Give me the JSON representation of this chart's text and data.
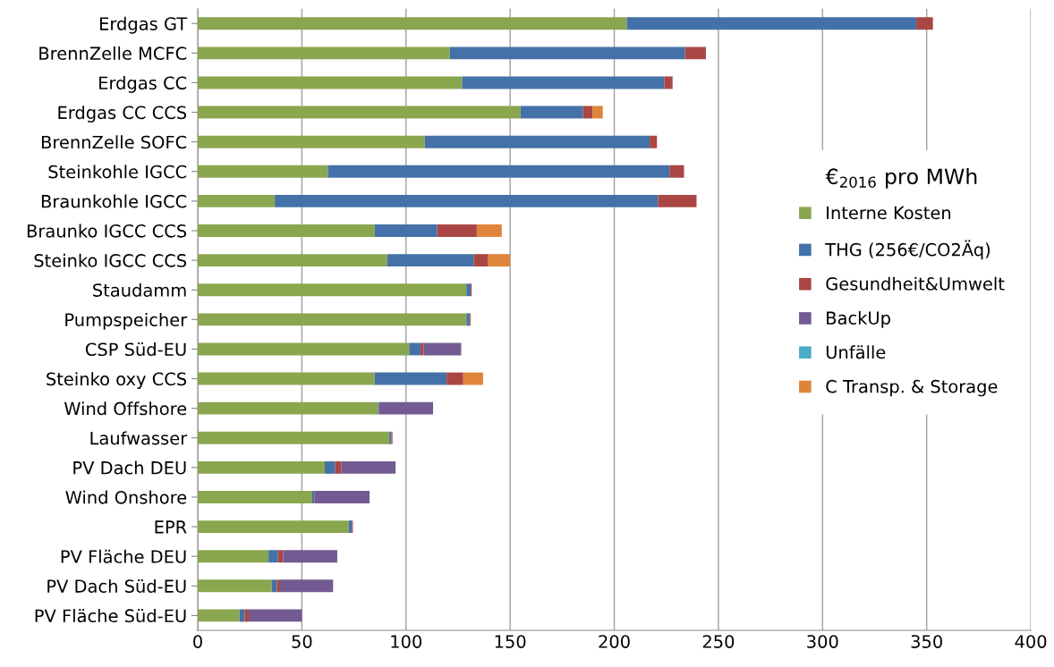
{
  "chart_data": {
    "type": "bar",
    "orientation": "horizontal",
    "stacked": true,
    "legend_title": "€$_{2016}$ pro MWh",
    "legend": "right",
    "grid": "x",
    "categories": [
      "Erdgas GT",
      "BrennZelle MCFC",
      "Erdgas CC",
      "Erdgas CC CCS",
      "BrennZelle SOFC",
      "Steinkohle IGCC",
      "Braunkohle IGCC",
      "Braunko IGCC CCS",
      "Steinko IGCC CCS",
      "Staudamm",
      "Pumpspeicher",
      "CSP Süd-EU",
      "Steinko oxy CCS",
      "Wind Offshore",
      "Laufwasser",
      "PV Dach DEU",
      "Wind Onshore",
      "EPR",
      "PV Fläche DEU",
      "PV Dach Süd-EU",
      "PV Fläche Süd-EU"
    ],
    "xlim": [
      0,
      400
    ],
    "xticks": [
      0,
      50,
      100,
      150,
      200,
      250,
      300,
      350,
      400
    ],
    "series": [
      {
        "name": "Interne Kosten",
        "color": "#8aa64e",
        "values": [
          206,
          121,
          127,
          155,
          109,
          62.5,
          37,
          85,
          91,
          129,
          129,
          101.5,
          85,
          86.5,
          92,
          61,
          55,
          72.5,
          34,
          35.5,
          20
        ]
      },
      {
        "name": "THG (256€/CO2Äq)",
        "color": "#4472a8",
        "values": [
          139,
          113,
          97,
          30,
          108,
          164,
          184,
          30,
          41.5,
          2,
          1.5,
          5.5,
          34.5,
          0.5,
          1,
          5,
          1,
          1.5,
          4.5,
          2.5,
          2.5
        ]
      },
      {
        "name": "Gesundheit&Umwelt",
        "color": "#aa4744",
        "values": [
          8,
          10,
          4,
          4.5,
          3.5,
          7,
          18.5,
          19,
          7,
          0.5,
          0.5,
          1.5,
          8,
          null,
          0.5,
          3,
          null,
          0.5,
          2.5,
          1.5,
          2
        ]
      },
      {
        "name": "BackUp",
        "color": "#735a92",
        "values": [
          null,
          null,
          null,
          null,
          null,
          null,
          null,
          null,
          null,
          null,
          null,
          18,
          null,
          26,
          null,
          26,
          26.5,
          null,
          26,
          25.5,
          25.5
        ]
      },
      {
        "name": "Unfälle",
        "color": "#4aacc5",
        "values": [
          null,
          null,
          null,
          null,
          null,
          null,
          null,
          null,
          null,
          null,
          null,
          null,
          null,
          null,
          null,
          null,
          null,
          null,
          null,
          null,
          null
        ]
      },
      {
        "name": "C Transp. & Storage",
        "color": "#df853b",
        "values": [
          null,
          null,
          null,
          5,
          null,
          null,
          null,
          12,
          10.5,
          null,
          null,
          null,
          9.5,
          null,
          null,
          null,
          null,
          null,
          null,
          null,
          null
        ]
      }
    ]
  }
}
